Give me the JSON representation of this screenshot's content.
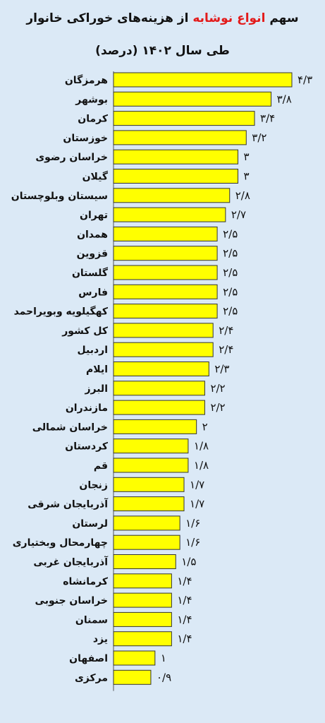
{
  "title": {
    "prefix": "سهم",
    "highlight": "انواع نوشابه",
    "suffix": "از هزینه‌های خوراکی خانوار",
    "line2": "طی سال ۱۴۰۲ (درصد)",
    "highlight_color": "#e31b1b"
  },
  "colors": {
    "background": "#dbe9f6",
    "bar": "#ffff00",
    "bar_border": "#333333"
  },
  "chart_data": {
    "type": "bar",
    "orientation": "horizontal",
    "xlim": [
      0,
      4.3
    ],
    "grid": false,
    "categories": [
      "هرمزگان",
      "بوشهر",
      "کرمان",
      "خوزستان",
      "خراسان رضوی",
      "گیلان",
      "سیستان وبلوچستان",
      "تهران",
      "همدان",
      "قزوین",
      "گلستان",
      "فارس",
      "کهگیلویه وبویراحمد",
      "کل کشور",
      "اردبیل",
      "ایلام",
      "البرز",
      "مازندران",
      "خراسان شمالی",
      "کردستان",
      "قم",
      "زنجان",
      "آذربایجان شرقی",
      "لرستان",
      "چهارمحال وبختیاری",
      "آذربایجان غربی",
      "کرمانشاه",
      "خراسان جنوبی",
      "سمنان",
      "یزد",
      "اصفهان",
      "مرکزی"
    ],
    "values": [
      4.3,
      3.8,
      3.4,
      3.2,
      3,
      3,
      2.8,
      2.7,
      2.5,
      2.5,
      2.5,
      2.5,
      2.5,
      2.4,
      2.4,
      2.3,
      2.2,
      2.2,
      2,
      1.8,
      1.8,
      1.7,
      1.7,
      1.6,
      1.6,
      1.5,
      1.4,
      1.4,
      1.4,
      1.4,
      1,
      0.9
    ],
    "value_labels": [
      "۴/۳",
      "۳/۸",
      "۳/۴",
      "۳/۲",
      "۳",
      "۳",
      "۲/۸",
      "۲/۷",
      "۲/۵",
      "۲/۵",
      "۲/۵",
      "۲/۵",
      "۲/۵",
      "۲/۴",
      "۲/۴",
      "۲/۳",
      "۲/۲",
      "۲/۲",
      "۲",
      "۱/۸",
      "۱/۸",
      "۱/۷",
      "۱/۷",
      "۱/۶",
      "۱/۶",
      "۱/۵",
      "۱/۴",
      "۱/۴",
      "۱/۴",
      "۱/۴",
      "۱",
      "۰/۹"
    ]
  }
}
